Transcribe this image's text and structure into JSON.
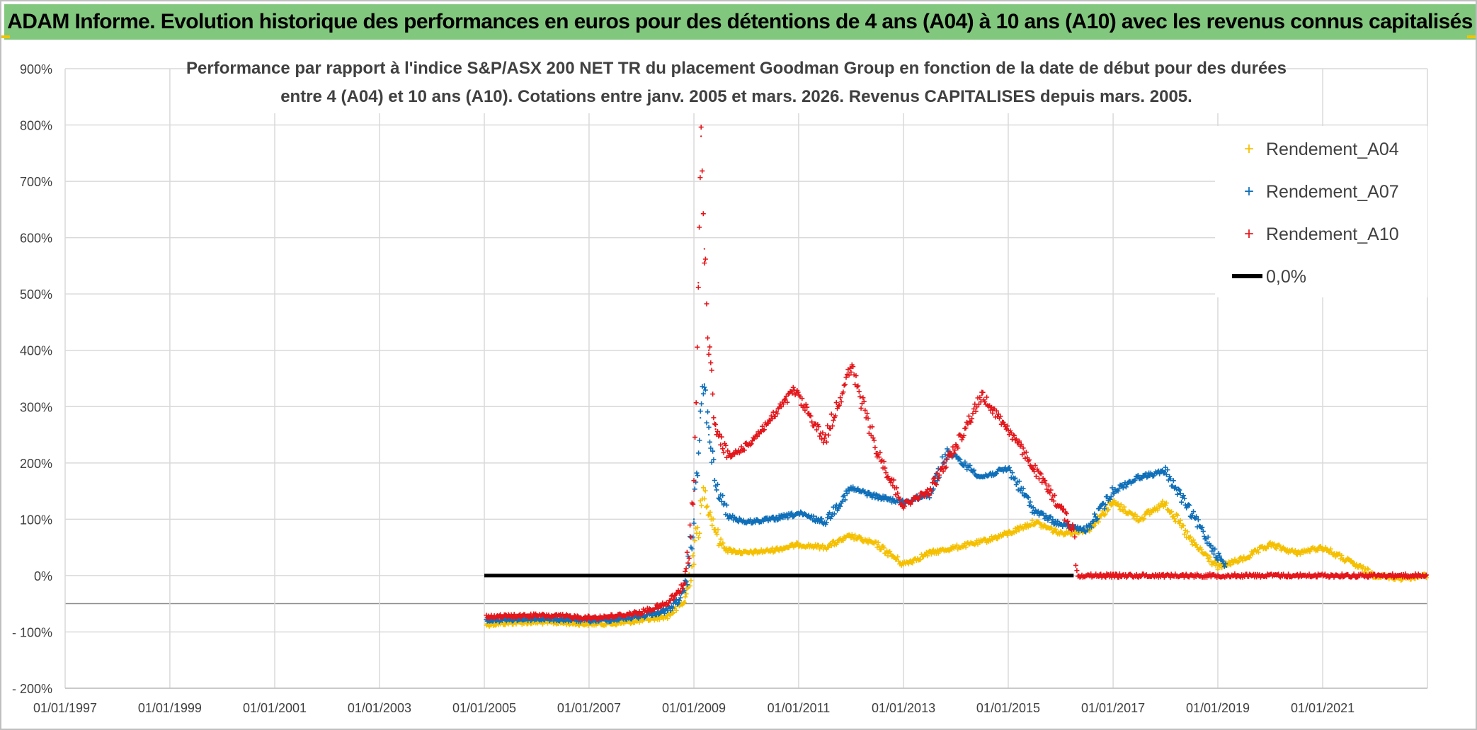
{
  "banner": {
    "title": "ADAM Informe. Evolution historique des performances en euros pour des détentions de 4 ans (A04) à 10 ans (A10) avec les revenus connus capitalisés",
    "background": "#82c77e"
  },
  "chart_data": {
    "type": "scatter",
    "title_lines": [
      "Performance par rapport à l'indice S&P/ASX 200 NET TR  du placement Goodman Group en fonction de la date de début pour des durées",
      "entre 4 (A04) et 10 ans (A10). Cotations entre janv. 2005 et mars. 2026. Revenus CAPITALISES depuis mars. 2005."
    ],
    "xlabel": "",
    "ylabel": "",
    "x_range": [
      "1997-01-01",
      "2023-01-01"
    ],
    "ylim": [
      -200,
      900
    ],
    "y_unit": "%",
    "y_ticks": [
      -200,
      -100,
      0,
      100,
      200,
      300,
      400,
      500,
      600,
      700,
      800,
      900
    ],
    "y_tick_labels": [
      "- 200%",
      "- 100%",
      "0%",
      "100%",
      "200%",
      "300%",
      "400%",
      "500%",
      "600%",
      "700%",
      "800%",
      "900%"
    ],
    "x_ticks": [
      "1997-01-01",
      "1999-01-01",
      "2001-01-01",
      "2003-01-01",
      "2005-01-01",
      "2007-01-01",
      "2009-01-01",
      "2011-01-01",
      "2013-01-01",
      "2015-01-01",
      "2017-01-01",
      "2019-01-01",
      "2021-01-01"
    ],
    "x_tick_labels": [
      "01/01/1997",
      "01/01/1999",
      "01/01/2001",
      "01/01/2003",
      "01/01/2005",
      "01/01/2007",
      "01/01/2009",
      "01/01/2011",
      "01/01/2013",
      "01/01/2015",
      "01/01/2017",
      "01/01/2019",
      "01/01/2021"
    ],
    "grid": true,
    "legend_position": "top-right",
    "marker": "+",
    "series": [
      {
        "name": "Rendement_A04",
        "color": "#f5c000",
        "points": [
          [
            "2005-01-15",
            -87
          ],
          [
            "2005-07-01",
            -84
          ],
          [
            "2006-01-01",
            -83
          ],
          [
            "2006-07-01",
            -84
          ],
          [
            "2007-01-01",
            -86
          ],
          [
            "2007-07-01",
            -85
          ],
          [
            "2008-01-01",
            -80
          ],
          [
            "2008-07-01",
            -72
          ],
          [
            "2008-11-01",
            -45
          ],
          [
            "2009-01-01",
            40
          ],
          [
            "2009-02-15",
            110
          ],
          [
            "2009-03-15",
            150
          ],
          [
            "2009-05-01",
            105
          ],
          [
            "2009-07-01",
            60
          ],
          [
            "2009-09-01",
            45
          ],
          [
            "2010-01-01",
            40
          ],
          [
            "2010-07-01",
            45
          ],
          [
            "2011-01-01",
            55
          ],
          [
            "2011-07-01",
            50
          ],
          [
            "2012-01-01",
            70
          ],
          [
            "2012-07-01",
            55
          ],
          [
            "2013-01-01",
            20
          ],
          [
            "2013-07-01",
            40
          ],
          [
            "2014-01-01",
            50
          ],
          [
            "2014-07-01",
            60
          ],
          [
            "2015-01-01",
            75
          ],
          [
            "2015-07-01",
            95
          ],
          [
            "2016-01-01",
            75
          ],
          [
            "2016-07-01",
            80
          ],
          [
            "2017-01-01",
            130
          ],
          [
            "2017-07-01",
            100
          ],
          [
            "2018-01-01",
            130
          ],
          [
            "2018-07-01",
            60
          ],
          [
            "2019-01-01",
            15
          ],
          [
            "2019-07-01",
            30
          ],
          [
            "2020-01-01",
            55
          ],
          [
            "2020-07-01",
            40
          ],
          [
            "2021-01-01",
            50
          ],
          [
            "2021-07-01",
            25
          ],
          [
            "2022-01-01",
            0
          ],
          [
            "2022-07-01",
            -5
          ],
          [
            "2022-12-31",
            0
          ]
        ]
      },
      {
        "name": "Rendement_A07",
        "color": "#0f6fb8",
        "points": [
          [
            "2005-01-15",
            -80
          ],
          [
            "2005-07-01",
            -78
          ],
          [
            "2006-01-01",
            -77
          ],
          [
            "2006-07-01",
            -78
          ],
          [
            "2007-01-01",
            -80
          ],
          [
            "2007-07-01",
            -78
          ],
          [
            "2008-01-01",
            -72
          ],
          [
            "2008-07-01",
            -62
          ],
          [
            "2008-11-01",
            -30
          ],
          [
            "2009-01-01",
            100
          ],
          [
            "2009-02-15",
            280
          ],
          [
            "2009-03-15",
            340
          ],
          [
            "2009-04-15",
            250
          ],
          [
            "2009-06-01",
            160
          ],
          [
            "2009-09-01",
            105
          ],
          [
            "2010-01-01",
            95
          ],
          [
            "2010-07-01",
            100
          ],
          [
            "2011-01-01",
            110
          ],
          [
            "2011-07-01",
            95
          ],
          [
            "2012-01-01",
            155
          ],
          [
            "2012-07-01",
            140
          ],
          [
            "2013-01-01",
            130
          ],
          [
            "2013-07-01",
            145
          ],
          [
            "2013-11-01",
            220
          ],
          [
            "2014-07-01",
            175
          ],
          [
            "2015-01-01",
            190
          ],
          [
            "2015-07-01",
            115
          ],
          [
            "2016-01-01",
            90
          ],
          [
            "2016-07-01",
            80
          ],
          [
            "2017-01-01",
            150
          ],
          [
            "2017-07-01",
            175
          ],
          [
            "2018-01-01",
            185
          ],
          [
            "2018-07-01",
            110
          ],
          [
            "2019-01-01",
            35
          ],
          [
            "2019-03-01",
            15
          ]
        ]
      },
      {
        "name": "Rendement_A10",
        "color": "#e3161b",
        "points": [
          [
            "2005-01-15",
            -73
          ],
          [
            "2005-07-01",
            -72
          ],
          [
            "2006-01-01",
            -71
          ],
          [
            "2006-07-01",
            -72
          ],
          [
            "2007-01-01",
            -75
          ],
          [
            "2007-07-01",
            -72
          ],
          [
            "2008-01-01",
            -65
          ],
          [
            "2008-07-01",
            -50
          ],
          [
            "2008-11-01",
            -15
          ],
          [
            "2009-01-01",
            150
          ],
          [
            "2009-02-01",
            520
          ],
          [
            "2009-02-20",
            780
          ],
          [
            "2009-03-15",
            580
          ],
          [
            "2009-04-15",
            400
          ],
          [
            "2009-06-01",
            260
          ],
          [
            "2009-09-01",
            210
          ],
          [
            "2010-01-01",
            230
          ],
          [
            "2010-07-01",
            280
          ],
          [
            "2010-12-01",
            330
          ],
          [
            "2011-07-01",
            240
          ],
          [
            "2012-01-01",
            370
          ],
          [
            "2012-07-01",
            220
          ],
          [
            "2013-01-01",
            125
          ],
          [
            "2013-07-01",
            150
          ],
          [
            "2014-01-01",
            230
          ],
          [
            "2014-07-01",
            320
          ],
          [
            "2015-01-01",
            260
          ],
          [
            "2015-07-01",
            190
          ],
          [
            "2016-01-01",
            120
          ],
          [
            "2016-04-01",
            80
          ],
          [
            "2016-05-01",
            0
          ],
          [
            "2022-12-31",
            0
          ]
        ]
      }
    ],
    "reference_line": {
      "name": "0,0%",
      "value": 0,
      "from": "2005-01-01",
      "to": "2016-04-01",
      "color": "#000000"
    }
  }
}
